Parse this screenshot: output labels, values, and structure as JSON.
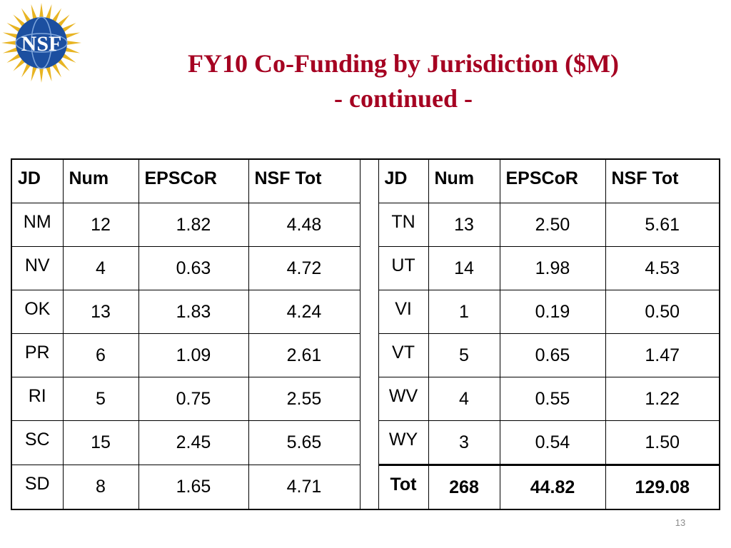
{
  "logo_text": "NSF",
  "colors": {
    "title": "#a50021",
    "logo_blue": "#1c4fa0",
    "logo_gold": "#e8b422"
  },
  "title": {
    "line1": "FY10 Co-Funding by Jurisdiction ($M)",
    "line2": "- continued -"
  },
  "table": {
    "headers": [
      "JD",
      "Num",
      "EPSCoR",
      "NSF Tot"
    ],
    "left_rows": [
      [
        "NM",
        "12",
        "1.82",
        "4.48"
      ],
      [
        "NV",
        "4",
        "0.63",
        "4.72"
      ],
      [
        "OK",
        "13",
        "1.83",
        "4.24"
      ],
      [
        "PR",
        "6",
        "1.09",
        "2.61"
      ],
      [
        "RI",
        "5",
        "0.75",
        "2.55"
      ],
      [
        "SC",
        "15",
        "2.45",
        "5.65"
      ],
      [
        "SD",
        "8",
        "1.65",
        "4.71"
      ]
    ],
    "right_rows": [
      [
        "TN",
        "13",
        "2.50",
        "5.61"
      ],
      [
        "UT",
        "14",
        "1.98",
        "4.53"
      ],
      [
        "VI",
        "1",
        "0.19",
        "0.50"
      ],
      [
        "VT",
        "5",
        "0.65",
        "1.47"
      ],
      [
        "WV",
        "4",
        "0.55",
        "1.22"
      ],
      [
        "WY",
        "3",
        "0.54",
        "1.50"
      ],
      [
        "Tot",
        "268",
        "44.82",
        "129.08"
      ]
    ]
  },
  "page_number": "13"
}
